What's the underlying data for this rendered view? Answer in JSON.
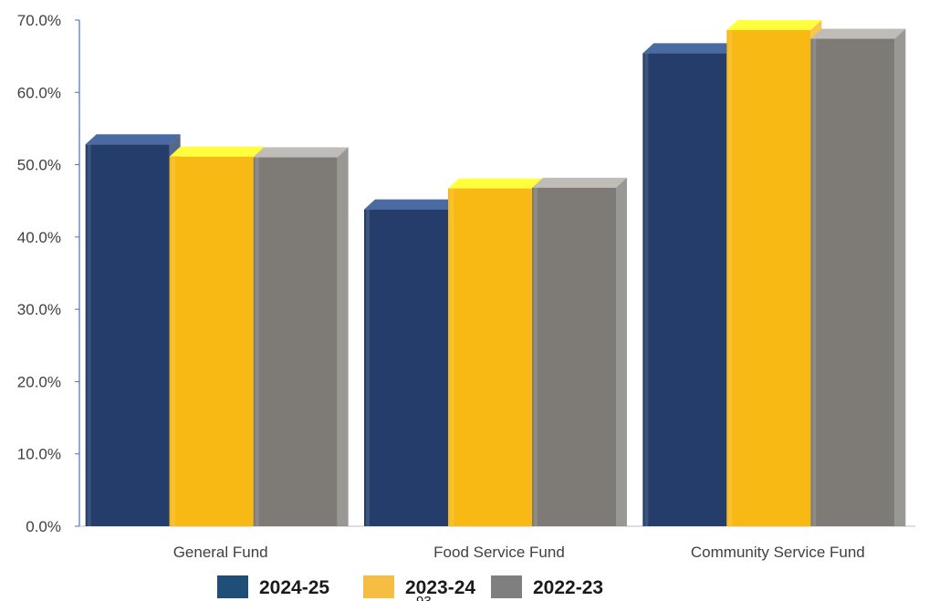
{
  "chart_data": {
    "type": "bar",
    "categories": [
      "General Fund",
      "Food Service Fund",
      "Community Service Fund"
    ],
    "series": [
      {
        "name": "2024-25",
        "values": [
          54.2,
          45.2,
          66.8
        ],
        "color": "#243d6b",
        "top_color": "#4a6aa3",
        "legend_color": "#1f4e79"
      },
      {
        "name": "2023-24",
        "values": [
          52.5,
          48.1,
          70.0
        ],
        "color": "#f9b915",
        "top_color": "#ffff3c",
        "legend_color": "#f5bd42"
      },
      {
        "name": "2022-23",
        "values": [
          52.4,
          48.2,
          68.8
        ],
        "color": "#7e7b77",
        "top_color": "#c0bcb8",
        "legend_color": "#7f7f7f"
      }
    ],
    "ylim": [
      0,
      70
    ],
    "yticks": [
      "0.0%",
      "10.0%",
      "20.0%",
      "30.0%",
      "40.0%",
      "50.0%",
      "60.0%",
      "70.0%"
    ],
    "grid": false,
    "legend_position": "bottom",
    "stray_text": "93"
  }
}
